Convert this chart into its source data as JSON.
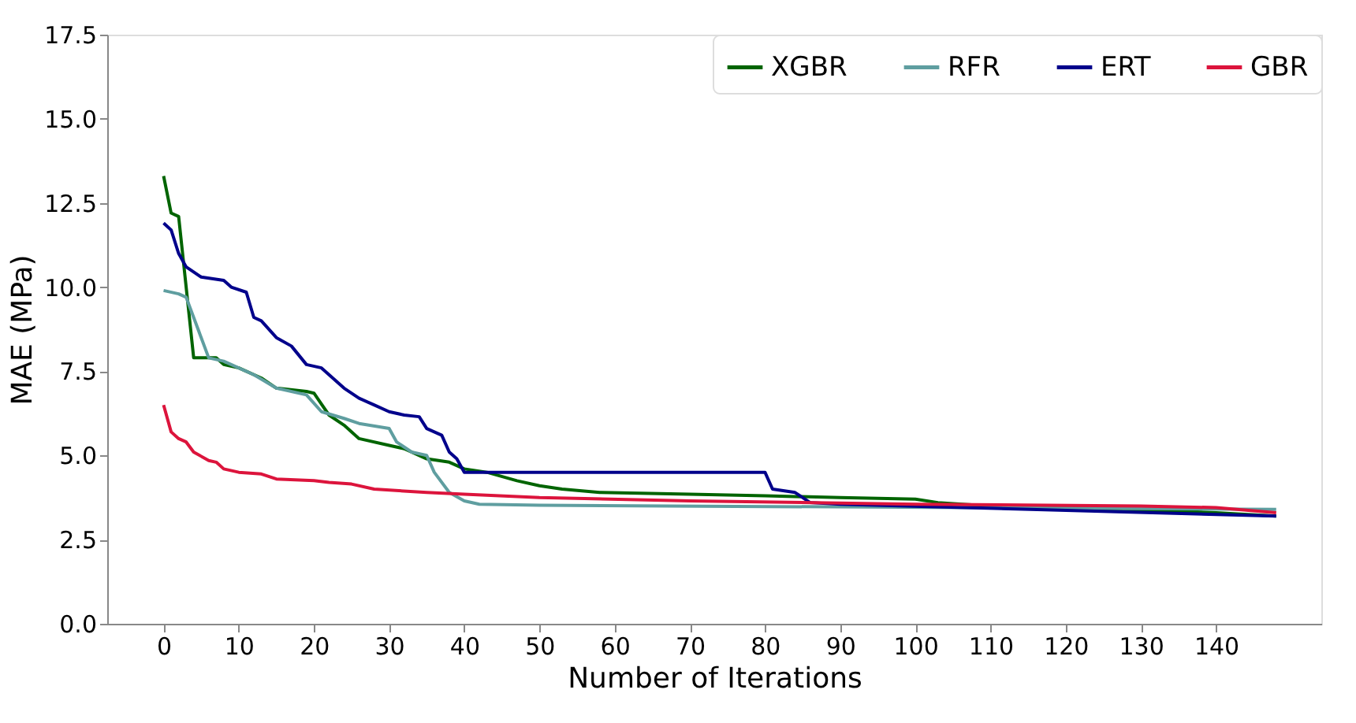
{
  "chart_data": {
    "type": "line",
    "xlabel": "Number of Iterations",
    "ylabel": "MAE (MPa)",
    "xlim": [
      -7.5,
      154
    ],
    "xticks": [
      0,
      10,
      20,
      30,
      40,
      50,
      60,
      70,
      80,
      90,
      100,
      110,
      120,
      130,
      140
    ],
    "ylim": [
      0,
      17.5
    ],
    "yticks": [
      {
        "value": 0,
        "label": "0.0"
      },
      2.5,
      {
        "value": 5,
        "label": "5.0"
      },
      7.5,
      {
        "value": 10,
        "label": "10.0"
      },
      12.5,
      {
        "value": 15,
        "label": "15.0"
      },
      17.5
    ],
    "grid": false,
    "legend": "top right",
    "marker": "none",
    "line_style": "solid",
    "series": [
      {
        "name": "XGBR",
        "color": "#006400",
        "x": [
          0,
          1,
          2,
          4,
          7,
          8,
          10,
          13,
          15,
          19,
          20,
          22,
          24,
          26,
          30,
          32,
          35,
          38,
          40,
          43,
          47,
          50,
          53,
          58,
          70,
          80,
          90,
          100,
          103,
          110,
          120,
          130,
          140,
          148
        ],
        "values": [
          13.3,
          12.2,
          12.1,
          7.9,
          7.9,
          7.7,
          7.6,
          7.3,
          7.0,
          6.9,
          6.85,
          6.2,
          5.9,
          5.5,
          5.3,
          5.2,
          4.9,
          4.8,
          4.6,
          4.5,
          4.25,
          4.1,
          4.0,
          3.9,
          3.85,
          3.8,
          3.75,
          3.7,
          3.6,
          3.5,
          3.45,
          3.38,
          3.3,
          3.2
        ]
      },
      {
        "name": "RFR",
        "color": "#5f9ea0",
        "x": [
          0,
          2,
          3,
          5,
          6,
          8,
          12,
          15,
          19,
          21,
          24,
          26,
          30,
          31,
          33,
          35,
          36,
          38,
          40,
          42,
          50,
          148
        ],
        "values": [
          9.9,
          9.8,
          9.7,
          8.5,
          7.9,
          7.8,
          7.4,
          7.0,
          6.8,
          6.3,
          6.1,
          5.95,
          5.8,
          5.4,
          5.1,
          5.0,
          4.5,
          3.9,
          3.65,
          3.55,
          3.52,
          3.4
        ]
      },
      {
        "name": "ERT",
        "color": "#00008b",
        "x": [
          0,
          1,
          2,
          3,
          5,
          8,
          9,
          11,
          12,
          13,
          15,
          17,
          19,
          21,
          22,
          24,
          26,
          28,
          30,
          32,
          34,
          35,
          37,
          38,
          39,
          40,
          80,
          81,
          84,
          86,
          90,
          148
        ],
        "values": [
          11.9,
          11.7,
          11.0,
          10.6,
          10.3,
          10.2,
          10.0,
          9.85,
          9.1,
          9.0,
          8.5,
          8.25,
          7.7,
          7.6,
          7.4,
          7.0,
          6.7,
          6.5,
          6.3,
          6.2,
          6.15,
          5.8,
          5.6,
          5.1,
          4.9,
          4.5,
          4.5,
          4.0,
          3.9,
          3.6,
          3.55,
          3.2
        ]
      },
      {
        "name": "GBR",
        "color": "#dc143c",
        "x": [
          0,
          1,
          2,
          3,
          4,
          6,
          7,
          8,
          10,
          13,
          15,
          20,
          22,
          25,
          28,
          35,
          40,
          50,
          70,
          100,
          130,
          140,
          148
        ],
        "values": [
          6.5,
          5.7,
          5.5,
          5.4,
          5.1,
          4.85,
          4.8,
          4.6,
          4.5,
          4.45,
          4.3,
          4.25,
          4.2,
          4.15,
          4.0,
          3.9,
          3.85,
          3.75,
          3.65,
          3.55,
          3.5,
          3.45,
          3.3
        ]
      }
    ]
  }
}
